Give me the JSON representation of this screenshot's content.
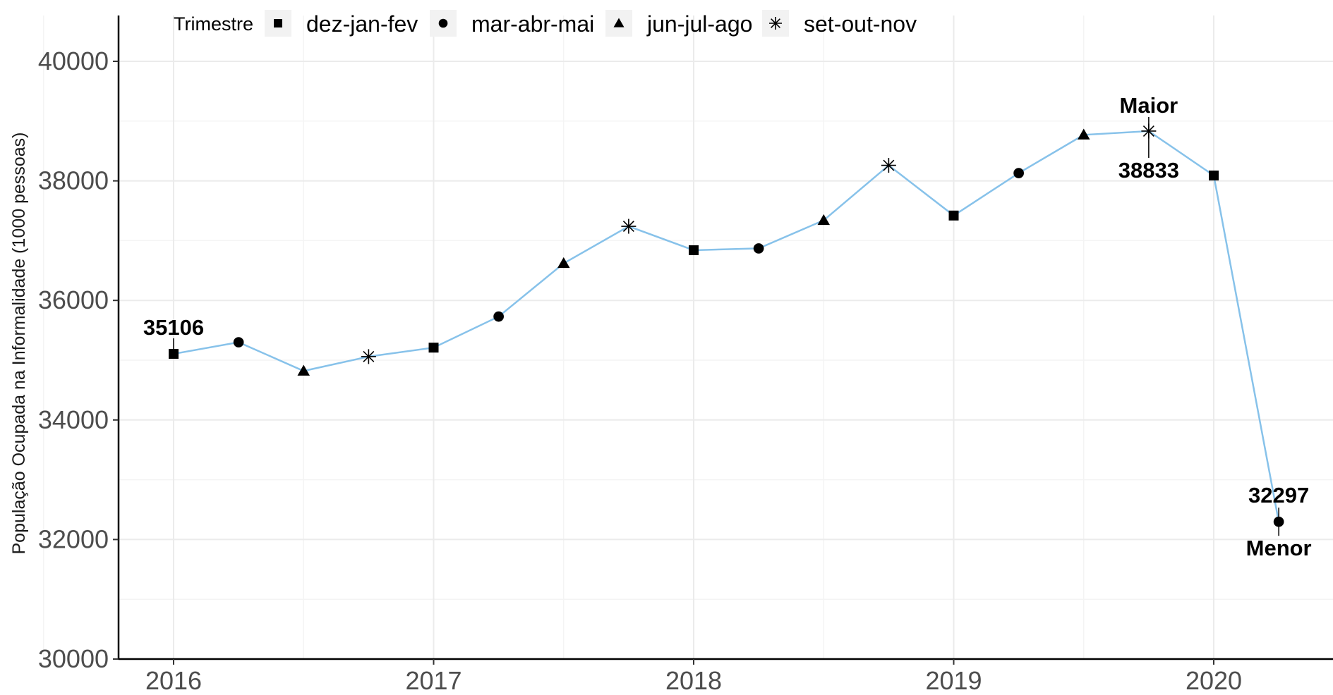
{
  "chart_data": {
    "type": "line",
    "ylabel": "População Ocupada na Informalidade (1000 pessoas)",
    "ylim": [
      30000,
      40000
    ],
    "y_ticks": [
      "30000",
      "32000",
      "34000",
      "36000",
      "38000",
      "40000"
    ],
    "x_ticks": [
      "2016",
      "2017",
      "2018",
      "2019",
      "2020"
    ],
    "xlim": [
      2015.8,
      2020.45
    ],
    "grid": true,
    "legend": {
      "title": "Trimestre",
      "placement": "top-left",
      "entries": [
        {
          "label": "dez-jan-fev",
          "shape": "square"
        },
        {
          "label": "mar-abr-mai",
          "shape": "circle"
        },
        {
          "label": "jun-jul-ago",
          "shape": "triangle"
        },
        {
          "label": "set-out-nov",
          "shape": "asterisk"
        }
      ]
    },
    "line_color": "#87c2ea",
    "points": [
      {
        "x": 2016.0,
        "y": 35106,
        "trimestre": "dez-jan-fev"
      },
      {
        "x": 2016.25,
        "y": 35300,
        "trimestre": "mar-abr-mai"
      },
      {
        "x": 2016.5,
        "y": 34820,
        "trimestre": "jun-jul-ago"
      },
      {
        "x": 2016.75,
        "y": 35060,
        "trimestre": "set-out-nov"
      },
      {
        "x": 2017.0,
        "y": 35210,
        "trimestre": "dez-jan-fev"
      },
      {
        "x": 2017.25,
        "y": 35730,
        "trimestre": "mar-abr-mai"
      },
      {
        "x": 2017.5,
        "y": 36620,
        "trimestre": "jun-jul-ago"
      },
      {
        "x": 2017.75,
        "y": 37240,
        "trimestre": "set-out-nov"
      },
      {
        "x": 2018.0,
        "y": 36840,
        "trimestre": "dez-jan-fev"
      },
      {
        "x": 2018.25,
        "y": 36870,
        "trimestre": "mar-abr-mai"
      },
      {
        "x": 2018.5,
        "y": 37340,
        "trimestre": "jun-jul-ago"
      },
      {
        "x": 2018.75,
        "y": 38260,
        "trimestre": "set-out-nov"
      },
      {
        "x": 2019.0,
        "y": 37420,
        "trimestre": "dez-jan-fev"
      },
      {
        "x": 2019.25,
        "y": 38130,
        "trimestre": "mar-abr-mai"
      },
      {
        "x": 2019.5,
        "y": 38770,
        "trimestre": "jun-jul-ago"
      },
      {
        "x": 2019.75,
        "y": 38833,
        "trimestre": "set-out-nov"
      },
      {
        "x": 2020.0,
        "y": 38090,
        "trimestre": "dez-jan-fev"
      },
      {
        "x": 2020.25,
        "y": 32297,
        "trimestre": "mar-abr-mai"
      }
    ],
    "annotations": [
      {
        "point_index": 0,
        "value_label": "35106"
      },
      {
        "point_index": 15,
        "value_label": "38833",
        "tag": "Maior"
      },
      {
        "point_index": 17,
        "value_label": "32297",
        "tag": "Menor"
      }
    ]
  }
}
